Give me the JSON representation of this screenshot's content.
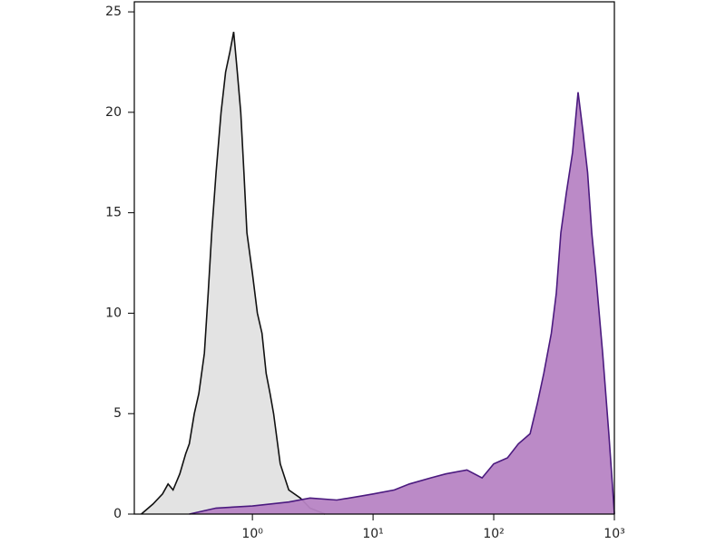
{
  "chart_data": {
    "type": "histogram-overlay",
    "xscale": "log",
    "xlim": [
      0.105,
      1000
    ],
    "ylim": [
      0,
      25.5
    ],
    "xticks": [
      {
        "value": 1,
        "label": "10⁰"
      },
      {
        "value": 10,
        "label": "10¹"
      },
      {
        "value": 100,
        "label": "10²"
      },
      {
        "value": 1000,
        "label": "10³"
      }
    ],
    "yticks": [
      0,
      5,
      10,
      15,
      20,
      25
    ],
    "series": [
      {
        "color": "#111111",
        "fill": "#e2e2e2",
        "x": [
          0.12,
          0.15,
          0.18,
          0.2,
          0.22,
          0.25,
          0.28,
          0.3,
          0.33,
          0.36,
          0.4,
          0.43,
          0.46,
          0.5,
          0.55,
          0.6,
          0.65,
          0.7,
          0.75,
          0.8,
          0.85,
          0.9,
          1.0,
          1.1,
          1.2,
          1.3,
          1.4,
          1.5,
          1.7,
          2,
          2.5,
          3,
          4
        ],
        "values": [
          0,
          0.5,
          1,
          1.5,
          1.2,
          2,
          3,
          3.5,
          5,
          6,
          8,
          11,
          14,
          17,
          20,
          22,
          23,
          24,
          22,
          20,
          17,
          14,
          12,
          10,
          9,
          7,
          6,
          5,
          2.5,
          1.2,
          0.8,
          0.3,
          0
        ]
      },
      {
        "color": "#4b1a7f",
        "fill": "#b784c4",
        "x": [
          0.3,
          0.5,
          1,
          2,
          3,
          5,
          8,
          10,
          15,
          20,
          30,
          40,
          60,
          80,
          100,
          130,
          160,
          200,
          230,
          260,
          300,
          330,
          360,
          400,
          450,
          500,
          550,
          600,
          650,
          700,
          800,
          900,
          950,
          1000
        ],
        "values": [
          0,
          0.3,
          0.4,
          0.6,
          0.8,
          0.7,
          0.9,
          1,
          1.2,
          1.5,
          1.8,
          2,
          2.2,
          1.8,
          2.5,
          2.8,
          3.5,
          4,
          5.5,
          7,
          9,
          11,
          14,
          16,
          18,
          21,
          19,
          17,
          14,
          12,
          8,
          4,
          2,
          0
        ]
      }
    ]
  }
}
